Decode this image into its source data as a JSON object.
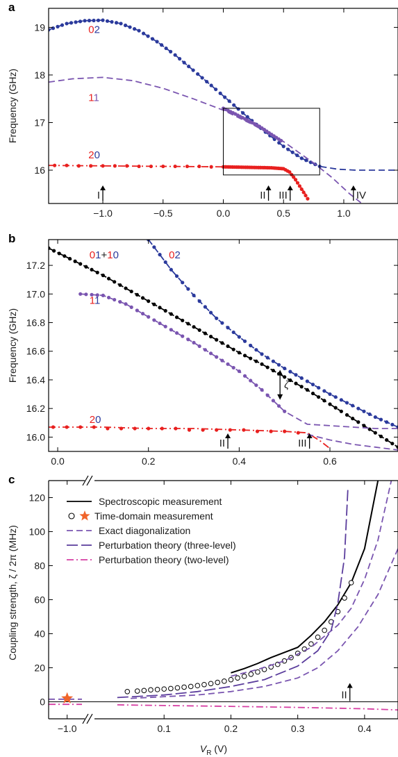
{
  "chart_data": [
    {
      "panel": "a",
      "type": "line",
      "ylabel": "Frequency (GHz)",
      "xlim": [
        -1.45,
        1.45
      ],
      "ylim": [
        15.3,
        19.4
      ],
      "xticks": [
        -1.0,
        -0.5,
        0.0,
        0.5,
        1.0
      ],
      "xtick_labels": [
        "−1.0",
        "−0.5",
        "0.0",
        "0.5",
        "1.0"
      ],
      "yticks": [
        16,
        17,
        18,
        19
      ],
      "ytick_labels": [
        "16",
        "17",
        "18",
        "19"
      ],
      "colors": {
        "blue": "#2b3a9c",
        "red": "#e8201f",
        "purple": "#7a55b0",
        "black": "#000000"
      },
      "state_labels": [
        {
          "x": -1.12,
          "y": 18.88,
          "first": "0",
          "second": "2"
        },
        {
          "x": -1.12,
          "y": 17.45,
          "first": "1",
          "second": "1"
        },
        {
          "x": -1.12,
          "y": 16.25,
          "first": "2",
          "second": "0"
        }
      ],
      "series": [
        {
          "name": "02",
          "style": "dashed",
          "color": "#2b3a9c",
          "x": [
            -1.45,
            -1.3,
            -1.15,
            -1.0,
            -0.85,
            -0.7,
            -0.55,
            -0.4,
            -0.25,
            -0.1,
            0.05,
            0.2,
            0.35,
            0.5,
            0.65,
            0.8,
            0.95,
            1.1,
            1.25,
            1.45
          ],
          "y": [
            18.95,
            19.08,
            19.14,
            19.15,
            19.08,
            18.93,
            18.7,
            18.42,
            18.1,
            17.78,
            17.45,
            17.12,
            16.8,
            16.5,
            16.25,
            16.08,
            16.02,
            16.0,
            16.0,
            16.0
          ]
        },
        {
          "name": "02",
          "style": "dots",
          "color": "#2b3a9c",
          "step": 0.035,
          "x": [
            -1.45,
            -1.3,
            -1.15,
            -1.0,
            -0.85,
            -0.7,
            -0.55,
            -0.4,
            -0.25,
            -0.1,
            0.05,
            0.2,
            0.35,
            0.5,
            0.65,
            0.8
          ],
          "y": [
            18.95,
            19.08,
            19.14,
            19.15,
            19.08,
            18.93,
            18.7,
            18.42,
            18.1,
            17.78,
            17.45,
            17.12,
            16.8,
            16.5,
            16.25,
            16.08
          ]
        },
        {
          "name": "11",
          "style": "dashed",
          "color": "#7a55b0",
          "x": [
            -1.45,
            -1.25,
            -1.0,
            -0.75,
            -0.5,
            -0.25,
            0.0,
            0.25,
            0.5,
            0.75,
            0.9,
            1.05,
            1.15
          ],
          "y": [
            17.85,
            17.92,
            17.95,
            17.88,
            17.72,
            17.5,
            17.26,
            16.95,
            16.6,
            16.15,
            15.85,
            15.5,
            15.3
          ]
        },
        {
          "name": "11",
          "style": "dots",
          "color": "#7a55b0",
          "step": 0.02,
          "x": [
            0.0,
            0.1,
            0.2,
            0.3,
            0.4,
            0.48
          ],
          "y": [
            17.3,
            17.18,
            17.05,
            16.92,
            16.75,
            16.62
          ]
        },
        {
          "name": "20",
          "style": "dashdot",
          "color": "#e8201f",
          "x": [
            -1.45,
            -1.0,
            -0.5,
            0.0,
            0.3,
            0.5,
            0.55,
            0.65,
            0.72
          ],
          "y": [
            16.1,
            16.09,
            16.08,
            16.07,
            16.06,
            16.03,
            15.95,
            15.62,
            15.35
          ]
        },
        {
          "name": "20",
          "style": "dots",
          "color": "#e8201f",
          "step": 0.015,
          "x": [
            0.0,
            0.2,
            0.4,
            0.5,
            0.55,
            0.6,
            0.65,
            0.7
          ],
          "y": [
            16.07,
            16.06,
            16.05,
            16.03,
            15.96,
            15.8,
            15.6,
            15.4
          ]
        },
        {
          "name": "20",
          "style": "sparse-dots",
          "color": "#e8201f",
          "x": [
            -1.4,
            -1.3,
            -1.2,
            -1.1,
            -1.0,
            -0.9,
            -0.8,
            -0.7,
            -0.6,
            -0.5,
            -0.4,
            -0.3,
            -0.2,
            -0.1
          ],
          "y": [
            16.1,
            16.1,
            16.09,
            16.09,
            16.09,
            16.09,
            16.09,
            16.08,
            16.08,
            16.08,
            16.08,
            16.08,
            16.08,
            16.07
          ]
        }
      ],
      "inset_box": {
        "x0": 0.0,
        "x1": 0.8,
        "y0": 15.9,
        "y1": 17.3
      },
      "markers": [
        {
          "x": -1.0,
          "label": "I",
          "side": "left"
        },
        {
          "x": 0.375,
          "label": "II",
          "side": "left"
        },
        {
          "x": 0.555,
          "label": "III",
          "side": "left"
        },
        {
          "x": 1.08,
          "label": "IV",
          "side": "right"
        }
      ]
    },
    {
      "panel": "b",
      "type": "line",
      "ylabel": "Frequency (GHz)",
      "xlim": [
        -0.02,
        0.75
      ],
      "ylim": [
        15.9,
        17.38
      ],
      "xticks": [
        0.0,
        0.2,
        0.4,
        0.6
      ],
      "xtick_labels": [
        "0.0",
        "0.2",
        "0.4",
        "0.6"
      ],
      "yticks": [
        16.0,
        16.2,
        16.4,
        16.6,
        16.8,
        17.0,
        17.2
      ],
      "ytick_labels": [
        "16.0",
        "16.2",
        "16.4",
        "16.6",
        "16.8",
        "17.0",
        "17.2"
      ],
      "colors": {
        "blue": "#2b3a9c",
        "red": "#e8201f",
        "purple": "#7a55b0",
        "black": "#000000"
      },
      "state_labels": [
        {
          "x": 0.07,
          "y": 17.25,
          "parts": [
            {
              "t": "0",
              "c": "red"
            },
            {
              "t": "1",
              "c": "blue"
            },
            {
              "t": "+",
              "c": "black"
            },
            {
              "t": "1",
              "c": "red"
            },
            {
              "t": "0",
              "c": "blue"
            }
          ]
        },
        {
          "x": 0.07,
          "y": 16.93,
          "parts": [
            {
              "t": "1",
              "c": "red"
            },
            {
              "t": "1",
              "c": "blue"
            }
          ]
        },
        {
          "x": 0.07,
          "y": 16.1,
          "parts": [
            {
              "t": "2",
              "c": "red"
            },
            {
              "t": "0",
              "c": "blue"
            }
          ]
        },
        {
          "x": 0.245,
          "y": 17.25,
          "parts": [
            {
              "t": "0",
              "c": "red"
            },
            {
              "t": "2",
              "c": "blue"
            }
          ]
        }
      ],
      "series": [
        {
          "name": "01+10",
          "style": "dots-line",
          "color": "#000000",
          "x": [
            -0.02,
            0.05,
            0.1,
            0.15,
            0.2,
            0.25,
            0.3,
            0.35,
            0.4,
            0.45,
            0.5,
            0.55,
            0.6,
            0.65,
            0.7,
            0.75
          ],
          "y": [
            17.32,
            17.21,
            17.13,
            17.04,
            16.95,
            16.86,
            16.77,
            16.68,
            16.59,
            16.51,
            16.42,
            16.33,
            16.23,
            16.13,
            16.03,
            15.93
          ]
        },
        {
          "name": "02",
          "style": "dots-line",
          "color": "#2b3a9c",
          "x": [
            0.2,
            0.25,
            0.3,
            0.35,
            0.4,
            0.45,
            0.5,
            0.55,
            0.6,
            0.65,
            0.7,
            0.75
          ],
          "y": [
            17.38,
            17.17,
            16.99,
            16.83,
            16.7,
            16.58,
            16.48,
            16.39,
            16.3,
            16.22,
            16.14,
            16.07
          ]
        },
        {
          "name": "11",
          "style": "dots",
          "color": "#7a55b0",
          "step": 0.012,
          "x": [
            0.05,
            0.1,
            0.15,
            0.2,
            0.25,
            0.3,
            0.35,
            0.4,
            0.45,
            0.5
          ],
          "y": [
            17.0,
            16.99,
            16.93,
            16.84,
            16.75,
            16.66,
            16.56,
            16.46,
            16.33,
            16.18
          ]
        },
        {
          "name": "11",
          "style": "dashed",
          "color": "#7a55b0",
          "x": [
            0.05,
            0.1,
            0.15,
            0.2,
            0.25,
            0.3,
            0.35,
            0.4,
            0.45,
            0.5,
            0.55,
            0.6,
            0.65,
            0.7,
            0.75
          ],
          "y": [
            17.0,
            16.99,
            16.93,
            16.84,
            16.75,
            16.66,
            16.56,
            16.46,
            16.33,
            16.18,
            16.09,
            16.08,
            16.07,
            16.06,
            16.06
          ]
        },
        {
          "name": "20",
          "style": "dashdot",
          "color": "#e8201f",
          "x": [
            -0.02,
            0.1,
            0.2,
            0.3,
            0.4,
            0.5,
            0.55,
            0.58,
            0.6
          ],
          "y": [
            16.07,
            16.07,
            16.06,
            16.06,
            16.05,
            16.04,
            16.03,
            15.97,
            15.92
          ]
        },
        {
          "name": "20",
          "style": "sparse-dots",
          "color": "#e8201f",
          "x": [
            -0.01,
            0.02,
            0.05,
            0.08,
            0.11,
            0.14,
            0.17,
            0.2,
            0.23,
            0.26,
            0.29,
            0.32,
            0.35,
            0.38,
            0.41,
            0.44,
            0.47,
            0.5,
            0.53
          ],
          "y": [
            16.07,
            16.07,
            16.07,
            16.07,
            16.06,
            16.06,
            16.06,
            16.06,
            16.06,
            16.06,
            16.05,
            16.05,
            16.05,
            16.05,
            16.05,
            16.04,
            16.04,
            16.04,
            16.03
          ]
        },
        {
          "name": "20-anticross",
          "style": "dashed",
          "color": "#7a55b0",
          "x": [
            0.55,
            0.6,
            0.65,
            0.7,
            0.75
          ],
          "y": [
            16.02,
            15.98,
            15.95,
            15.93,
            15.91
          ]
        }
      ],
      "xi_arrow": {
        "x": 0.49,
        "y_top": 16.47,
        "y_bottom": 16.26,
        "label": "ζ"
      },
      "markers": [
        {
          "x": 0.375,
          "label": "II",
          "side": "left"
        },
        {
          "x": 0.555,
          "label": "III",
          "side": "left"
        }
      ]
    },
    {
      "panel": "c",
      "type": "line",
      "xlabel_main": "V",
      "xlabel_sub": "R",
      "xlabel_unit": " (V)",
      "ylabel": "Coupling strength, ζ / 2π  (MHz)",
      "ylim": [
        -10,
        130
      ],
      "yticks": [
        0,
        20,
        40,
        60,
        80,
        100,
        120
      ],
      "ytick_labels": [
        "0",
        "20",
        "40",
        "60",
        "80",
        "100",
        "120"
      ],
      "break_left_xlim": [
        -1.1,
        -0.92
      ],
      "break_right_xlim": [
        0.0,
        0.45
      ],
      "xticks_left": [
        -1.0
      ],
      "xtick_labels_left": [
        "−1.0"
      ],
      "xticks_right": [
        0.1,
        0.2,
        0.3,
        0.4
      ],
      "xtick_labels_right": [
        "0.1",
        "0.2",
        "0.3",
        "0.4"
      ],
      "colors": {
        "black": "#000000",
        "purple": "#7a55b0",
        "magenta": "#d63fa3",
        "orange": "#f0642a"
      },
      "legend": [
        {
          "label": "Spectroscopic measurement",
          "style": "solid",
          "color": "#000000"
        },
        {
          "label": "Time-domain measurement",
          "style": "markers",
          "color": "#000000"
        },
        {
          "label": "Exact diagonalization",
          "style": "dashed",
          "color": "#7a55b0"
        },
        {
          "label": "Perturbation theory (three-level)",
          "style": "longdash",
          "color": "#5a3c9c"
        },
        {
          "label": "Perturbation theory (two-level)",
          "style": "dashdot",
          "color": "#d63fa3"
        }
      ],
      "series": [
        {
          "name": "Spectroscopic measurement",
          "style": "solid",
          "color": "#000000",
          "x": [
            0.2,
            0.22,
            0.24,
            0.26,
            0.28,
            0.3,
            0.32,
            0.34,
            0.36,
            0.38,
            0.4,
            0.42
          ],
          "y": [
            17,
            19.5,
            22.5,
            26,
            29,
            32,
            39,
            47,
            57,
            70,
            90,
            130
          ]
        },
        {
          "name": "Time-domain measurement",
          "style": "circles",
          "color": "#000000",
          "x": [
            0.045,
            0.06,
            0.07,
            0.08,
            0.09,
            0.1,
            0.11,
            0.12,
            0.13,
            0.14,
            0.15,
            0.16,
            0.17,
            0.18,
            0.19,
            0.2,
            0.21,
            0.22,
            0.23,
            0.24,
            0.25,
            0.26,
            0.27,
            0.28,
            0.29,
            0.3,
            0.31,
            0.32,
            0.33,
            0.34,
            0.35,
            0.36,
            0.37,
            0.38
          ],
          "y": [
            6,
            6.3,
            6.6,
            7,
            7.2,
            7.5,
            7.8,
            8.2,
            8.6,
            9,
            9.5,
            10.1,
            10.7,
            11.4,
            12.1,
            13,
            14,
            15,
            16.2,
            17.5,
            19,
            20.5,
            22,
            24,
            26,
            28.5,
            31,
            34,
            38,
            42,
            47,
            53,
            61,
            70
          ]
        },
        {
          "name": "Time-domain measurement",
          "style": "star",
          "color": "#f0642a",
          "x_break": -1.0,
          "y": 2
        },
        {
          "name": "Exact diagonalization (upper)",
          "style": "dashed",
          "color": "#7a55b0",
          "x": [
            0.2,
            0.24,
            0.28,
            0.32,
            0.36,
            0.38,
            0.4,
            0.42,
            0.44
          ],
          "y": [
            15,
            19,
            24,
            32,
            45,
            55,
            72,
            95,
            130
          ]
        },
        {
          "name": "Exact diagonalization (lower)",
          "style": "dashed",
          "color": "#7a55b0",
          "x": [
            0.05,
            0.1,
            0.15,
            0.2,
            0.25,
            0.3,
            0.33,
            0.36,
            0.39,
            0.42,
            0.45
          ],
          "y": [
            2,
            3,
            4,
            6,
            9,
            14,
            20,
            30,
            44,
            63,
            90
          ]
        },
        {
          "name": "Exact diagonalization (left)",
          "style": "dashed",
          "color": "#7a55b0",
          "x_break": [
            -1.1,
            -0.92
          ],
          "y": [
            1.5,
            1.5
          ]
        },
        {
          "name": "Perturbation theory (three-level)",
          "style": "longdash",
          "color": "#5a3c9c",
          "x": [
            0.03,
            0.1,
            0.15,
            0.2,
            0.25,
            0.3,
            0.33,
            0.35,
            0.36,
            0.37,
            0.375
          ],
          "y": [
            2.5,
            4,
            6,
            9,
            13,
            21,
            30,
            42,
            58,
            85,
            125
          ]
        },
        {
          "name": "Perturbation theory (two-level)",
          "style": "dashdot",
          "color": "#d63fa3",
          "x": [
            0.03,
            0.1,
            0.2,
            0.3,
            0.4,
            0.45
          ],
          "y": [
            -1.8,
            -2.2,
            -2.7,
            -3.3,
            -4.1,
            -4.8
          ]
        },
        {
          "name": "Perturbation theory (two-level) (left)",
          "style": "dashdot",
          "color": "#d63fa3",
          "x_break": [
            -1.1,
            -0.92
          ],
          "y": [
            -1.5,
            -1.5
          ]
        }
      ],
      "markers": [
        {
          "x": 0.378,
          "label": "II",
          "side": "left"
        }
      ]
    }
  ],
  "panel_letters": {
    "a": "a",
    "b": "b",
    "c": "c"
  }
}
